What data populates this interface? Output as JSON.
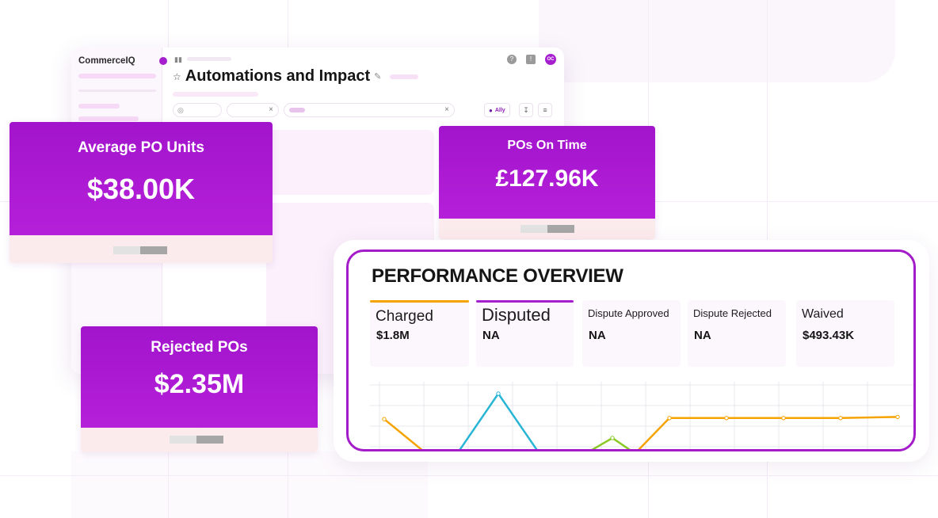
{
  "app": {
    "logo": "CommerceIQ",
    "page_title": "Automations and Impact",
    "avatar_initials": "OC",
    "ally_label": "Ally",
    "accent_color": "#a51fcf"
  },
  "kpis": [
    {
      "label": "Average PO Units",
      "value": "$38.00K"
    },
    {
      "label": "POs On Time",
      "value": "£127.96K"
    },
    {
      "label": "Rejected POs",
      "value": "$2.35M"
    }
  ],
  "performance": {
    "title": "PERFORMANCE OVERVIEW",
    "metrics": [
      {
        "label": "Charged",
        "value": "$1.8M",
        "active_color": "#f5a300"
      },
      {
        "label": "Disputed",
        "value": "NA",
        "active_color": "#a51fcf"
      },
      {
        "label": "Dispute Approved",
        "value": "NA"
      },
      {
        "label": "Dispute Rejected",
        "value": "NA"
      },
      {
        "label": "Waived",
        "value": "$493.43K"
      }
    ]
  },
  "chart_data": {
    "type": "line",
    "title": "",
    "xlabel": "",
    "ylabel": "",
    "grid": true,
    "x": [
      0,
      1,
      2,
      3,
      4,
      5,
      6,
      7,
      8,
      9
    ],
    "ylim": [
      0,
      100
    ],
    "series": [
      {
        "color": "#f5a300",
        "values": [
          72,
          30,
          null,
          null,
          20,
          73,
          73,
          73,
          73,
          74
        ]
      },
      {
        "color": "#29b5d6",
        "values": [
          null,
          20,
          95,
          20,
          null,
          null,
          null,
          null,
          null,
          null
        ]
      },
      {
        "color": "#8ac925",
        "values": [
          null,
          null,
          null,
          25,
          55,
          20,
          null,
          null,
          null,
          null
        ]
      }
    ]
  }
}
